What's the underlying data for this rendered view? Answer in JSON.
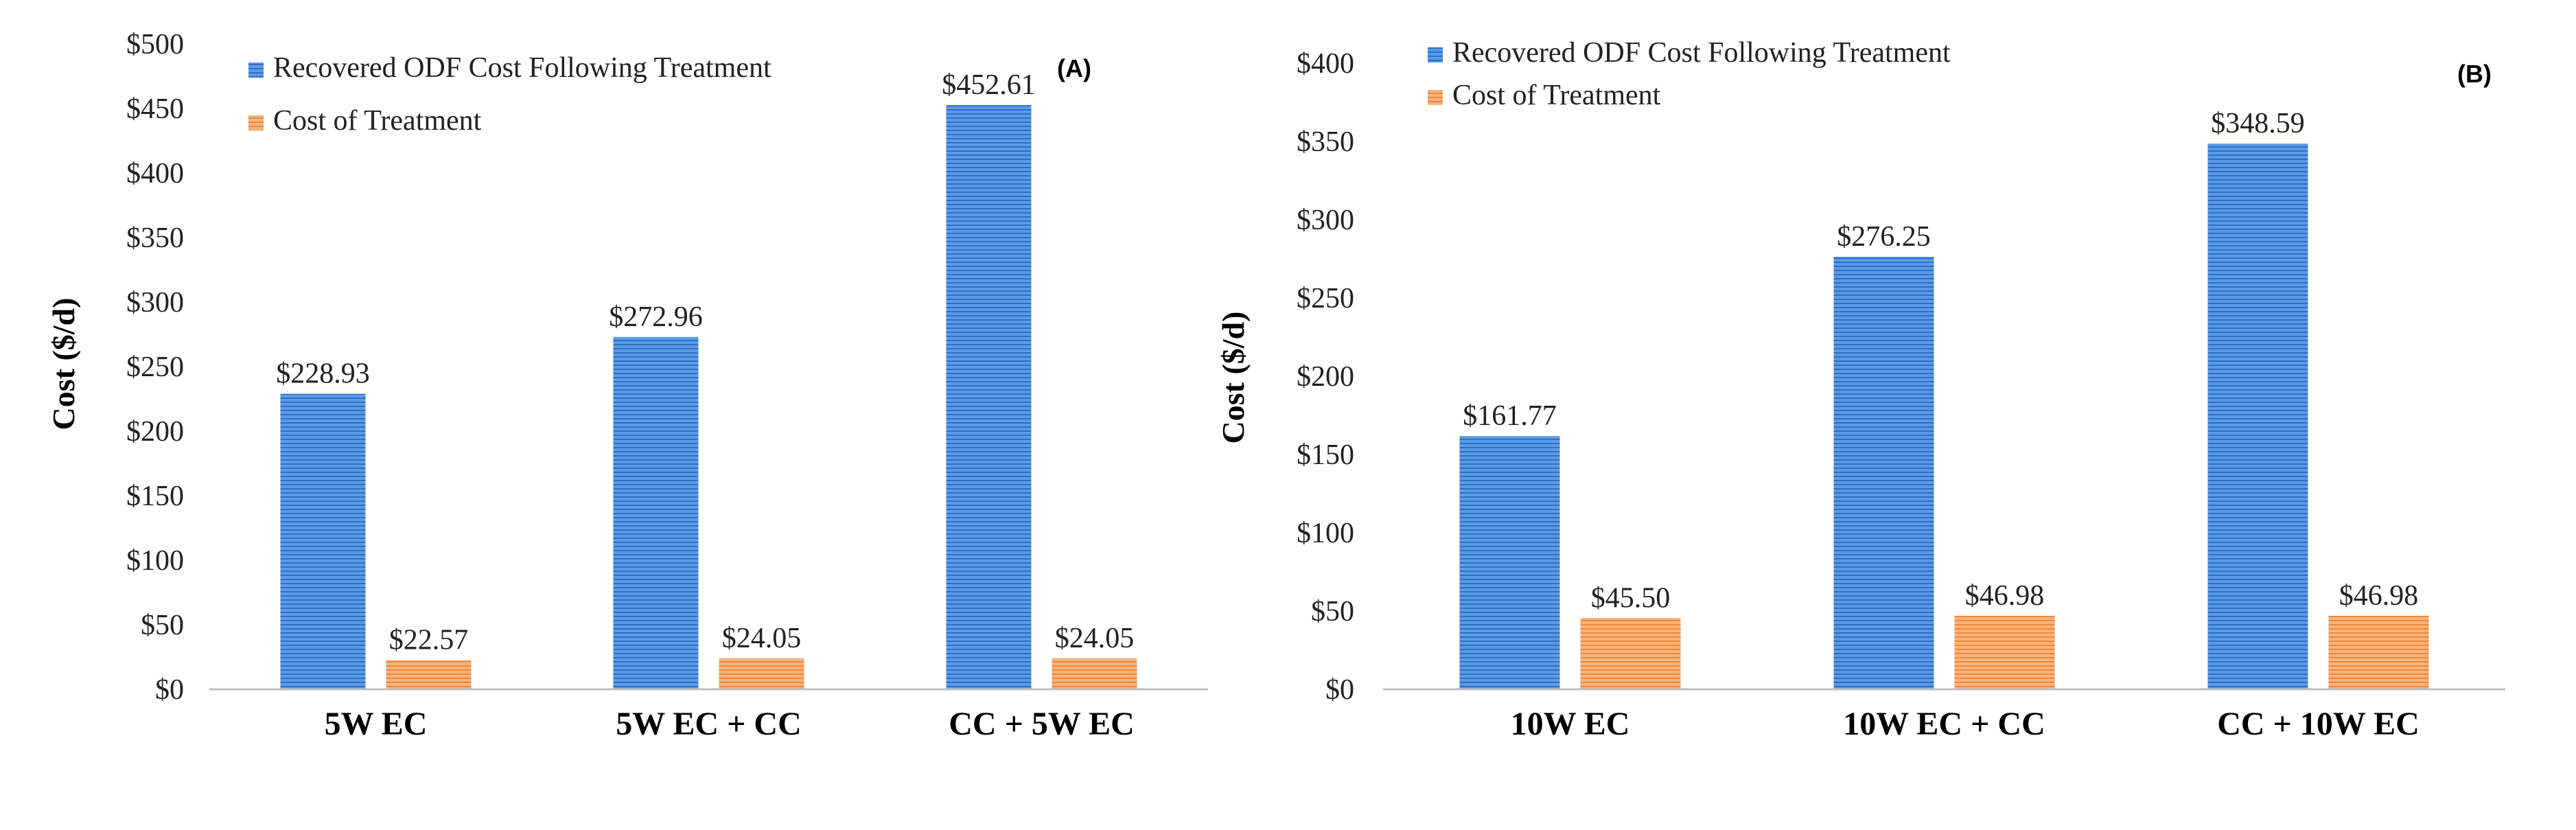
{
  "chart_data": [
    {
      "type": "bar",
      "panel_label": "(A)",
      "categories": [
        "5W EC",
        "5W EC + CC",
        "CC + 5W EC"
      ],
      "series": [
        {
          "name": "Recovered ODF Cost Following Treatment",
          "values": [
            228.93,
            272.96,
            452.61
          ],
          "labels": [
            "$228.93",
            "$272.96",
            "$452.61"
          ],
          "color": "#4a86d8"
        },
        {
          "name": "Cost of Treatment",
          "values": [
            22.57,
            24.05,
            24.05
          ],
          "labels": [
            "$22.57",
            "$24.05",
            "$24.05"
          ],
          "color": "#f4a460"
        }
      ],
      "ylabel": "Cost ($/d)",
      "xlabel": "",
      "ylim": [
        0,
        500
      ],
      "yticks": [
        0,
        50,
        100,
        150,
        200,
        250,
        300,
        350,
        400,
        450,
        500
      ],
      "ytick_labels": [
        "$0",
        "$50",
        "$100",
        "$150",
        "$200",
        "$250",
        "$300",
        "$350",
        "$400",
        "$450",
        "$500"
      ],
      "legend_position": "top-left",
      "grid": false
    },
    {
      "type": "bar",
      "panel_label": "(B)",
      "categories": [
        "10W EC",
        "10W EC + CC",
        "CC + 10W EC"
      ],
      "series": [
        {
          "name": "Recovered ODF Cost Following Treatment",
          "values": [
            161.77,
            276.25,
            348.59
          ],
          "labels": [
            "$161.77",
            "$276.25",
            "$348.59"
          ],
          "color": "#4a86d8"
        },
        {
          "name": "Cost of Treatment",
          "values": [
            45.5,
            46.98,
            46.98
          ],
          "labels": [
            "$45.50",
            "$46.98",
            "$46.98"
          ],
          "color": "#f4a460"
        }
      ],
      "ylabel": "Cost ($/d)",
      "xlabel": "",
      "ylim": [
        0,
        400
      ],
      "yticks": [
        0,
        50,
        100,
        150,
        200,
        250,
        300,
        350,
        400
      ],
      "ytick_labels": [
        "$0",
        "$50",
        "$100",
        "$150",
        "$200",
        "$250",
        "$300",
        "$350",
        "$400"
      ],
      "legend_position": "top-left",
      "grid": false
    }
  ]
}
